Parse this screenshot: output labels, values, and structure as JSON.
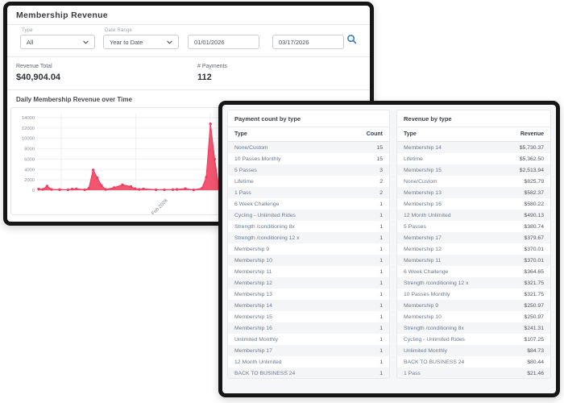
{
  "accent_colors": {
    "chart_pink": "#F1556F",
    "chart_pink_stroke": "#EE4164",
    "search_blue": "#2E76C0",
    "frame_black": "#161616"
  },
  "main_panel": {
    "title": "Membership Revenue",
    "filters": {
      "type_label": "Type",
      "type_value": "All",
      "date_range_label": "Date Range",
      "date_range_value": "Year to Date",
      "start_date": "01/01/2026",
      "end_date": "03/17/2026"
    },
    "summary": {
      "revenue_total_label": "Revenue Total",
      "revenue_total_value": "$40,904.04",
      "payments_label": "# Payments",
      "payments_value": "112"
    },
    "chart_title": "Daily Membership Revenue over Time"
  },
  "chart_data": {
    "type": "area",
    "title": "Daily Membership Revenue over Time",
    "ylabel": "",
    "xlabel": "",
    "ylim": [
      0,
      14000
    ],
    "yticks": [
      0,
      2000,
      4000,
      6000,
      8000,
      10000,
      12000,
      14000
    ],
    "x_range_days": "01/01/2026 to 03/17/2026",
    "x_max_day": 75,
    "x_tick_day": 31,
    "x_tick_label": "Feb 2026",
    "x_gridline_days": [
      5.4,
      23.2,
      40.9
    ],
    "grid": true,
    "legend": false,
    "color": "#F1556F",
    "color_stroke": "#EE4164",
    "points": [
      [
        0,
        220
      ],
      [
        1,
        150
      ],
      [
        2,
        800
      ],
      [
        3,
        150
      ],
      [
        5,
        120
      ],
      [
        7,
        90
      ],
      [
        8,
        200
      ],
      [
        9,
        260
      ],
      [
        11,
        100
      ],
      [
        12,
        400
      ],
      [
        13,
        3900
      ],
      [
        14,
        2400
      ],
      [
        15,
        900
      ],
      [
        16,
        150
      ],
      [
        18,
        500
      ],
      [
        20,
        1050
      ],
      [
        22,
        700
      ],
      [
        23,
        300
      ],
      [
        24,
        150
      ],
      [
        25,
        250
      ],
      [
        28,
        100
      ],
      [
        30,
        90
      ],
      [
        32,
        120
      ],
      [
        33,
        160
      ],
      [
        35,
        300
      ],
      [
        37,
        60
      ],
      [
        39,
        400
      ],
      [
        40,
        2500
      ],
      [
        41,
        12800
      ],
      [
        42,
        6000
      ],
      [
        43,
        600
      ],
      [
        44,
        150
      ],
      [
        47,
        100
      ],
      [
        51,
        120
      ],
      [
        54,
        90
      ],
      [
        57,
        110
      ],
      [
        61,
        80
      ],
      [
        65,
        130
      ],
      [
        69,
        90
      ],
      [
        75,
        100
      ]
    ]
  },
  "payment_count_table": {
    "title": "Payment count by type",
    "columns": [
      "Type",
      "Count"
    ],
    "rows": [
      [
        "None/Custom",
        "15"
      ],
      [
        "10 Passes Monthly",
        "15"
      ],
      [
        "5 Passes",
        "3"
      ],
      [
        "Lifetime",
        "2"
      ],
      [
        "1 Pass",
        "2"
      ],
      [
        "6 Week Challenge",
        "1"
      ],
      [
        "Cycling - Unlimited Rides",
        "1"
      ],
      [
        "Strength /conditioning 8x",
        "1"
      ],
      [
        "Strength /conditioning 12 x",
        "1"
      ],
      [
        "Membership 9",
        "1"
      ],
      [
        "Membership 10",
        "1"
      ],
      [
        "Membership 11",
        "1"
      ],
      [
        "Membership 12",
        "1"
      ],
      [
        "Membership 13",
        "1"
      ],
      [
        "Membership 14",
        "1"
      ],
      [
        "Membership 15",
        "1"
      ],
      [
        "Membership 16",
        "1"
      ],
      [
        "Unlimited Monthly",
        "1"
      ],
      [
        "Membership 17",
        "1"
      ],
      [
        "12 Month Unlimited",
        "1"
      ],
      [
        "BACK TO BUSINESS 24",
        "1"
      ]
    ]
  },
  "revenue_table": {
    "title": "Revenue by type",
    "columns": [
      "Type",
      "Revenue"
    ],
    "rows": [
      [
        "Membership 14",
        "$5,730.37"
      ],
      [
        "Lifetime",
        "$5,362.50"
      ],
      [
        "Membership 15",
        "$2,513.94"
      ],
      [
        "None/Custom",
        "$825.79"
      ],
      [
        "Membership 13",
        "$582.37"
      ],
      [
        "Membership 16",
        "$580.22"
      ],
      [
        "12 Month Unlimited",
        "$490.13"
      ],
      [
        "5 Passes",
        "$380.74"
      ],
      [
        "Membership 17",
        "$379.67"
      ],
      [
        "Membership 12",
        "$370.01"
      ],
      [
        "Membership 11",
        "$370.01"
      ],
      [
        "6 Week Challenge",
        "$364.65"
      ],
      [
        "Strength /conditioning 12 x",
        "$321.75"
      ],
      [
        "10 Passes Monthly",
        "$321.75"
      ],
      [
        "Membership 9",
        "$250.97"
      ],
      [
        "Membership 10",
        "$250.97"
      ],
      [
        "Strength /conditioning 8x",
        "$241.31"
      ],
      [
        "Cycling - Unlimited Rides",
        "$107.25"
      ],
      [
        "Unlimited Monthly",
        "$84.73"
      ],
      [
        "BACK TO BUSINESS 24",
        "$80.44"
      ],
      [
        "1 Pass",
        "$21.46"
      ]
    ]
  }
}
